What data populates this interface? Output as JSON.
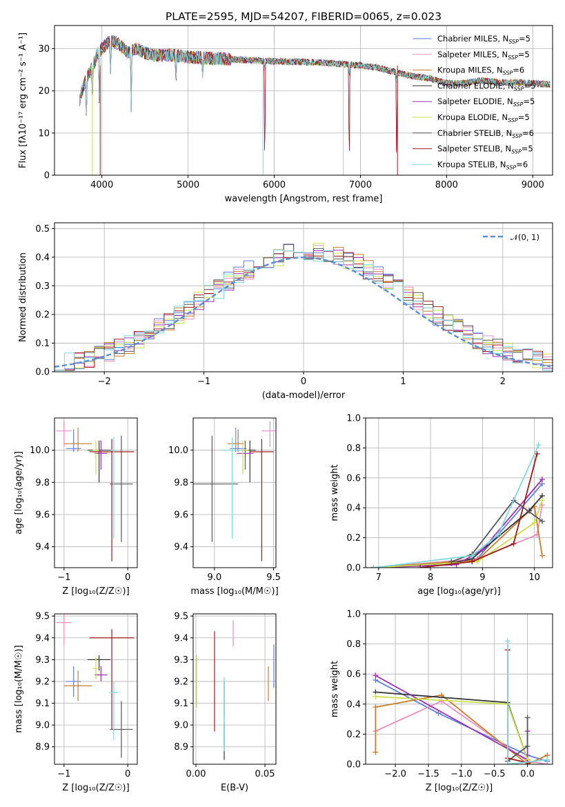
{
  "figure": {
    "title": "PLATE=2595, MJD=54207, FIBERID=0065, z=0.023"
  },
  "colors": {
    "chabrier_miles": "#5f7ee0",
    "salpeter_miles": "#e98fbe",
    "kroupa_miles": "#c77d2a",
    "chabrier_elodie": "#333333",
    "salpeter_elodie": "#9b2fb0",
    "kroupa_elodie": "#c8e04a",
    "chabrier_stelib": "#555555",
    "salpeter_stelib": "#a01818",
    "kroupa_stelib": "#7fd8dd",
    "gaussian": "#5b8fd6",
    "grid": "#b0b0b0"
  },
  "chart_data": [
    {
      "id": "spectrum",
      "type": "line",
      "xlabel": "wavelength [Angstrom, rest frame]",
      "ylabel": "Flux [f$_\\lambda$10$^{-17}$ erg cm$^{-2}$ s$^{-1}$ A$^{-1}$]",
      "ylabel_display": "Flux [fλ10⁻¹⁷ erg cm⁻² s⁻¹ A⁻¹]",
      "xlim": [
        3450,
        9230
      ],
      "ylim": [
        0,
        35.5
      ],
      "xticks": [
        4000,
        5000,
        6000,
        7000,
        8000,
        9000
      ],
      "yticks": [
        0,
        10,
        20,
        30
      ],
      "legend_position": "top-right",
      "legend": [
        "Chabrier MILES, N_SSP=5",
        "Salpeter MILES, N_SSP=5",
        "Kroupa MILES, N_SSP=6",
        "Chabrier ELODIE, N_SSP=5",
        "Salpeter ELODIE, N_SSP=5",
        "Kroupa ELODIE, N_SSP=5",
        "Chabrier STELIB, N_SSP=6",
        "Salpeter STELIB, N_SSP=5",
        "Kroupa STELIB, N_SSP=6"
      ],
      "continuum": [
        [
          3740,
          18
        ],
        [
          3800,
          22
        ],
        [
          3900,
          26
        ],
        [
          3950,
          29
        ],
        [
          4000,
          30
        ],
        [
          4100,
          32
        ],
        [
          4200,
          31
        ],
        [
          4300,
          29
        ],
        [
          4400,
          30
        ],
        [
          4500,
          29
        ],
        [
          4600,
          28.5
        ],
        [
          4800,
          28.5
        ],
        [
          5000,
          28
        ],
        [
          5200,
          27.8
        ],
        [
          5500,
          27.5
        ],
        [
          5800,
          27.2
        ],
        [
          6000,
          27
        ],
        [
          6500,
          26.8
        ],
        [
          7000,
          26
        ],
        [
          7200,
          25.5
        ],
        [
          7400,
          24.5
        ],
        [
          7600,
          23.5
        ],
        [
          7800,
          23
        ],
        [
          8000,
          21.8
        ],
        [
          8200,
          21.8
        ],
        [
          8400,
          22.5
        ],
        [
          8600,
          22
        ],
        [
          8800,
          22
        ],
        [
          9000,
          21.8
        ],
        [
          9200,
          21.5
        ]
      ],
      "dips": [
        [
          3820,
          12
        ],
        [
          3890,
          18
        ],
        [
          3970,
          14
        ],
        [
          4100,
          24
        ],
        [
          4340,
          15
        ],
        [
          4860,
          21
        ],
        [
          5170,
          22
        ],
        [
          5890,
          0
        ],
        [
          6560,
          26
        ],
        [
          6870,
          0
        ],
        [
          7420,
          0
        ]
      ]
    },
    {
      "id": "residuals",
      "type": "histogram",
      "xlabel": "(data-model)/error",
      "ylabel": "Normed distribution",
      "xlim": [
        -2.5,
        2.5
      ],
      "ylim": [
        0,
        0.52
      ],
      "xticks": [
        -2,
        -1,
        0,
        1,
        2
      ],
      "yticks": [
        0.0,
        0.1,
        0.2,
        0.3,
        0.4,
        0.5
      ],
      "legend": [
        "𝒩(0, 1)"
      ],
      "legend_position": "top-right",
      "bin_width": 0.1
    },
    {
      "id": "age_vs_Z",
      "type": "scatter",
      "xlabel": "Z [log₁₀(Z/Z☉)]",
      "ylabel": "age  [log₁₀(age/yr)]",
      "xlim": [
        -1.15,
        0.15
      ],
      "ylim": [
        9.27,
        10.2
      ],
      "xticks": [
        -1,
        0
      ],
      "yticks": [
        9.4,
        9.6,
        9.8,
        10.0
      ],
      "points": [
        {
          "model": "chabrier_miles",
          "x": -0.85,
          "xerr": 0.12,
          "y": 10.01,
          "yerr_lo": 0.02,
          "yerr_hi": 0.12
        },
        {
          "model": "salpeter_miles",
          "x": -1.0,
          "xerr": 0.12,
          "y": 10.12,
          "yerr_lo": 0.1,
          "yerr_hi": 0.06
        },
        {
          "model": "kroupa_miles",
          "x": -0.78,
          "xerr": 0.22,
          "y": 10.04,
          "yerr_lo": 0.05,
          "yerr_hi": 0.1
        },
        {
          "model": "chabrier_elodie",
          "x": -0.45,
          "xerr": 0.18,
          "y": 10.0,
          "yerr_lo": 0.2,
          "yerr_hi": 0.06
        },
        {
          "model": "salpeter_elodie",
          "x": -0.42,
          "xerr": 0.1,
          "y": 9.98,
          "yerr_lo": 0.1,
          "yerr_hi": 0.08
        },
        {
          "model": "kroupa_elodie",
          "x": -0.5,
          "xerr": 0.05,
          "y": 10.0,
          "yerr_lo": 0.15,
          "yerr_hi": 0.06
        },
        {
          "model": "chabrier_stelib",
          "x": -0.1,
          "xerr": 0.18,
          "y": 9.79,
          "yerr_lo": 0.36,
          "yerr_hi": 0.3
        },
        {
          "model": "salpeter_stelib",
          "x": -0.25,
          "xerr": 0.35,
          "y": 9.99,
          "yerr_lo": 0.68,
          "yerr_hi": 0.08
        },
        {
          "model": "kroupa_stelib",
          "x": -0.22,
          "xerr": 0.05,
          "y": 10.0,
          "yerr_lo": 0.55,
          "yerr_hi": 0.08
        }
      ]
    },
    {
      "id": "age_vs_mass",
      "type": "scatter",
      "xlabel": "mass [log₁₀(M/M☉)]",
      "ylabel": "",
      "xlim": [
        8.82,
        9.52
      ],
      "ylim": [
        9.27,
        10.2
      ],
      "xticks": [
        9.0,
        9.5
      ],
      "yticks": [
        9.4,
        9.6,
        9.8,
        10.0
      ],
      "points": [
        {
          "model": "chabrier_miles",
          "x": 9.2,
          "xerr": 0.07,
          "y": 10.01,
          "yerr_lo": 0.02,
          "yerr_hi": 0.12
        },
        {
          "model": "salpeter_miles",
          "x": 9.47,
          "xerr": 0.07,
          "y": 10.12,
          "yerr_lo": 0.1,
          "yerr_hi": 0.06
        },
        {
          "model": "kroupa_miles",
          "x": 9.18,
          "xerr": 0.07,
          "y": 10.04,
          "yerr_lo": 0.05,
          "yerr_hi": 0.1
        },
        {
          "model": "chabrier_elodie",
          "x": 9.3,
          "xerr": 0.05,
          "y": 10.0,
          "yerr_lo": 0.2,
          "yerr_hi": 0.06
        },
        {
          "model": "salpeter_elodie",
          "x": 9.26,
          "xerr": 0.07,
          "y": 9.98,
          "yerr_lo": 0.1,
          "yerr_hi": 0.08
        },
        {
          "model": "kroupa_elodie",
          "x": 9.24,
          "xerr": 0.05,
          "y": 10.0,
          "yerr_lo": 0.15,
          "yerr_hi": 0.06
        },
        {
          "model": "chabrier_stelib",
          "x": 8.98,
          "xerr": 0.22,
          "y": 9.79,
          "yerr_lo": 0.36,
          "yerr_hi": 0.3
        },
        {
          "model": "salpeter_stelib",
          "x": 9.4,
          "xerr": 0.1,
          "y": 9.99,
          "yerr_lo": 0.68,
          "yerr_hi": 0.08
        },
        {
          "model": "kroupa_stelib",
          "x": 9.15,
          "xerr": 0.1,
          "y": 10.0,
          "yerr_lo": 0.55,
          "yerr_hi": 0.08
        }
      ]
    },
    {
      "id": "mass_weight_vs_age",
      "type": "line",
      "xlabel": "age  [log₁₀(age/yr)]",
      "ylabel": "mass weight",
      "xlim": [
        6.75,
        10.35
      ],
      "ylim": [
        0,
        1.0
      ],
      "xticks": [
        7,
        8,
        9,
        10
      ],
      "yticks": [
        0.0,
        0.2,
        0.4,
        0.6,
        0.8,
        1.0
      ],
      "series": [
        {
          "model": "chabrier_miles",
          "x": [
            6.9,
            8.4,
            8.9,
            10.15
          ],
          "y": [
            0.0,
            0.03,
            0.06,
            0.56
          ]
        },
        {
          "model": "salpeter_miles",
          "x": [
            6.9,
            8.9,
            10.05,
            10.15
          ],
          "y": [
            0.0,
            0.06,
            0.22,
            0.42
          ]
        },
        {
          "model": "kroupa_miles",
          "x": [
            6.9,
            8.9,
            10.0,
            10.15
          ],
          "y": [
            0.0,
            0.05,
            0.41,
            0.08
          ]
        },
        {
          "model": "chabrier_elodie",
          "x": [
            6.9,
            8.4,
            8.8,
            9.9,
            10.15
          ],
          "y": [
            0.0,
            0.03,
            0.06,
            0.38,
            0.48
          ]
        },
        {
          "model": "salpeter_elodie",
          "x": [
            6.9,
            8.5,
            9.0,
            10.15
          ],
          "y": [
            0.0,
            0.02,
            0.12,
            0.59
          ]
        },
        {
          "model": "kroupa_elodie",
          "x": [
            6.9,
            8.9,
            10.0,
            10.15
          ],
          "y": [
            0.0,
            0.04,
            0.3,
            0.45
          ]
        },
        {
          "model": "chabrier_stelib",
          "x": [
            8.4,
            8.8,
            9.6,
            10.15
          ],
          "y": [
            0.04,
            0.09,
            0.45,
            0.31
          ]
        },
        {
          "model": "salpeter_stelib",
          "x": [
            7.8,
            8.8,
            9.6,
            10.05
          ],
          "y": [
            0.0,
            0.04,
            0.16,
            0.76
          ]
        },
        {
          "model": "kroupa_stelib",
          "x": [
            6.9,
            8.8,
            9.3,
            10.08
          ],
          "y": [
            0.0,
            0.08,
            0.22,
            0.82
          ]
        }
      ]
    },
    {
      "id": "mass_vs_Z",
      "type": "scatter",
      "xlabel": "Z [log₁₀(Z/Z☉)]",
      "ylabel": "mass [log₁₀(M/M☉)]",
      "xlim": [
        -1.15,
        0.15
      ],
      "ylim": [
        8.82,
        9.51
      ],
      "xticks": [
        -1,
        0
      ],
      "yticks": [
        8.9,
        9.0,
        9.1,
        9.2,
        9.3,
        9.4,
        9.5
      ],
      "points": [
        {
          "model": "chabrier_miles",
          "x": -0.85,
          "xerr": 0.12,
          "y": 9.2,
          "yerr_lo": 0.07,
          "yerr_hi": 0.07
        },
        {
          "model": "salpeter_miles",
          "x": -1.0,
          "xerr": 0.12,
          "y": 9.47,
          "yerr_lo": 0.1,
          "yerr_hi": 0.04
        },
        {
          "model": "kroupa_miles",
          "x": -0.78,
          "xerr": 0.22,
          "y": 9.18,
          "yerr_lo": 0.07,
          "yerr_hi": 0.07
        },
        {
          "model": "chabrier_elodie",
          "x": -0.45,
          "xerr": 0.18,
          "y": 9.3,
          "yerr_lo": 0.05,
          "yerr_hi": 0.02
        },
        {
          "model": "salpeter_elodie",
          "x": -0.42,
          "xerr": 0.1,
          "y": 9.23,
          "yerr_lo": 0.03,
          "yerr_hi": 0.04
        },
        {
          "model": "kroupa_elodie",
          "x": -0.5,
          "xerr": 0.05,
          "y": 9.26,
          "yerr_lo": 0.05,
          "yerr_hi": 0.05
        },
        {
          "model": "chabrier_stelib",
          "x": -0.1,
          "xerr": 0.18,
          "y": 8.98,
          "yerr_lo": 0.13,
          "yerr_hi": 0.13
        },
        {
          "model": "salpeter_stelib",
          "x": -0.25,
          "xerr": 0.35,
          "y": 9.4,
          "yerr_lo": 0.42,
          "yerr_hi": 0.04
        },
        {
          "model": "kroupa_stelib",
          "x": -0.22,
          "xerr": 0.07,
          "y": 9.15,
          "yerr_lo": 0.22,
          "yerr_hi": 0.05
        }
      ]
    },
    {
      "id": "mass_vs_ebv",
      "type": "scatter",
      "xlabel": "E(B-V)",
      "ylabel": "",
      "xlim": [
        -0.002,
        0.058
      ],
      "ylim": [
        8.82,
        9.51
      ],
      "xticks": [
        0.0,
        0.05
      ],
      "yticks": [
        8.9,
        9.0,
        9.1,
        9.2,
        9.3,
        9.4,
        9.5
      ],
      "points": [
        {
          "model": "chabrier_miles",
          "x": 0.0565,
          "xerr": 0,
          "y": 9.27,
          "yerr_lo": 0.1,
          "yerr_hi": 0.1
        },
        {
          "model": "salpeter_miles",
          "x": 0.027,
          "xerr": 0,
          "y": 9.4,
          "yerr_lo": 0.04,
          "yerr_hi": 0.08
        },
        {
          "model": "kroupa_miles",
          "x": 0.0525,
          "xerr": 0,
          "y": 9.19,
          "yerr_lo": 0.08,
          "yerr_hi": 0.08
        },
        {
          "model": "chabrier_elodie",
          "x": 0.0205,
          "xerr": 0,
          "y": 8.96,
          "yerr_lo": 0.12,
          "yerr_hi": 0.05
        },
        {
          "model": "salpeter_elodie",
          "x": 0.0205,
          "xerr": 0,
          "y": 9.1,
          "yerr_lo": 0.06,
          "yerr_hi": 0.1
        },
        {
          "model": "kroupa_elodie",
          "x": 0.0005,
          "xerr": 0,
          "y": 9.2,
          "yerr_lo": 0.12,
          "yerr_hi": 0.12
        },
        {
          "model": "chabrier_stelib",
          "x": 0.0205,
          "xerr": 0,
          "y": 9.05,
          "yerr_lo": 0.15,
          "yerr_hi": 0.15
        },
        {
          "model": "salpeter_stelib",
          "x": 0.0135,
          "xerr": 0,
          "y": 9.2,
          "yerr_lo": 0.23,
          "yerr_hi": 0.23
        },
        {
          "model": "kroupa_stelib",
          "x": 0.0205,
          "xerr": 0,
          "y": 9.05,
          "yerr_lo": 0.17,
          "yerr_hi": 0.17
        }
      ]
    },
    {
      "id": "mass_weight_vs_Z",
      "type": "line",
      "xlabel": "Z [log₁₀(Z/Z☉)]",
      "ylabel": "mass weight",
      "xlim": [
        -2.45,
        0.38
      ],
      "ylim": [
        0,
        1.0
      ],
      "xticks": [
        -2.0,
        -1.5,
        -1.0,
        -0.5,
        0.0
      ],
      "yticks": [
        0.0,
        0.2,
        0.4,
        0.6,
        0.8,
        1.0
      ],
      "series": [
        {
          "model": "chabrier_miles",
          "x": [
            -2.3,
            -1.35,
            0.0,
            0.3
          ],
          "y": [
            0.56,
            0.34,
            0.06,
            0.02
          ]
        },
        {
          "model": "salpeter_miles",
          "x": [
            -2.3,
            -1.3,
            0.0,
            0.3
          ],
          "y": [
            0.22,
            0.42,
            0.02,
            0.0
          ]
        },
        {
          "model": "kroupa_miles",
          "x": [
            -2.3,
            -2.3,
            -1.3,
            0.0,
            0.3
          ],
          "y": [
            0.08,
            0.38,
            0.46,
            0.0,
            0.06
          ]
        },
        {
          "model": "chabrier_elodie",
          "x": [
            -2.3,
            -0.3,
            0.0
          ],
          "y": [
            0.48,
            0.41,
            0.03
          ]
        },
        {
          "model": "salpeter_elodie",
          "x": [
            -2.3,
            0.0,
            0.0
          ],
          "y": [
            0.59,
            0.03,
            0.22
          ]
        },
        {
          "model": "kroupa_elodie",
          "x": [
            -2.3,
            -0.3,
            0.0
          ],
          "y": [
            0.45,
            0.4,
            0.03
          ]
        },
        {
          "model": "chabrier_stelib",
          "x": [
            -0.3,
            0.0,
            0.0
          ],
          "y": [
            0.02,
            0.12,
            0.31
          ]
        },
        {
          "model": "salpeter_stelib",
          "x": [
            -0.3,
            -0.3,
            0.0
          ],
          "y": [
            0.76,
            0.04,
            0.01
          ]
        },
        {
          "model": "kroupa_stelib",
          "x": [
            -0.3,
            -0.3,
            0.3
          ],
          "y": [
            0.82,
            0.0,
            0.03
          ]
        }
      ]
    }
  ]
}
